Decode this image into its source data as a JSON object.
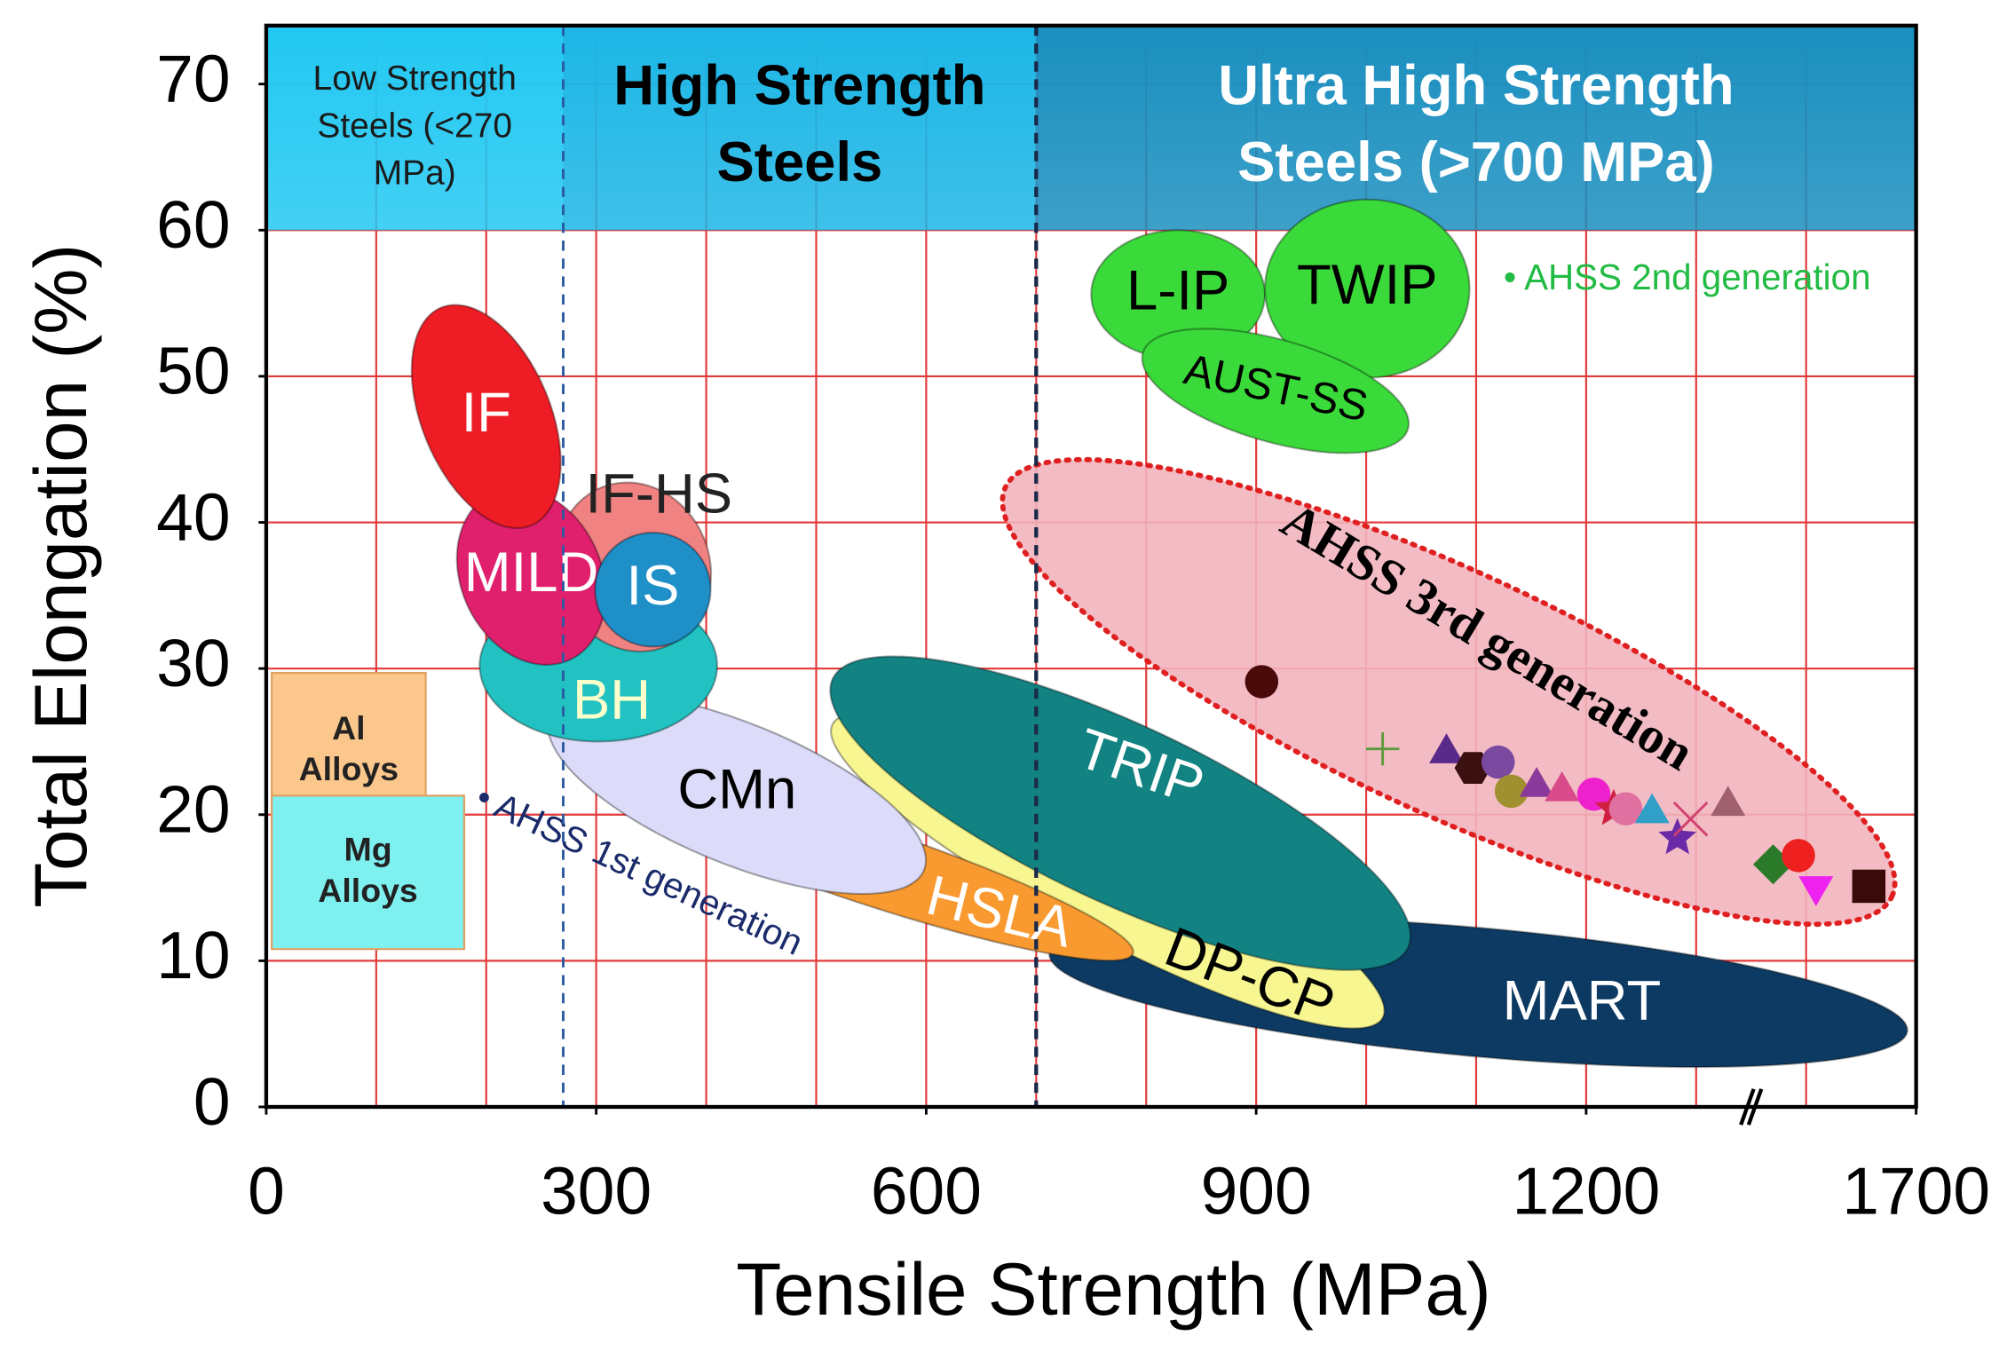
{
  "chart_data": {
    "type": "region-map",
    "xlabel": "Tensile Strength (MPa)",
    "ylabel": "Total Elongation (%)",
    "xlim": [
      0,
      1700
    ],
    "xbreak": [
      1350,
      1550
    ],
    "ylim": [
      0,
      74
    ],
    "xticks": [
      0,
      300,
      600,
      900,
      1200,
      1700
    ],
    "yticks": [
      0,
      10,
      20,
      30,
      40,
      50,
      60,
      70
    ],
    "xgrid": [
      100,
      200,
      300,
      400,
      500,
      600,
      700,
      800,
      900,
      1000,
      1100,
      1200,
      1300,
      1600
    ],
    "grid_color": "#e23a3a",
    "bands": [
      {
        "lines": [
          "Low Strength",
          "Steels (<270",
          "MPa)"
        ],
        "from": 0,
        "to": 270,
        "color": "#22c8f2",
        "text_color": "#1a1a1a",
        "bold": false
      },
      {
        "lines": [
          "High Strength",
          "Steels"
        ],
        "from": 270,
        "to": 700,
        "color": "#1cb6e6",
        "text_color": "#000000",
        "bold": true
      },
      {
        "lines": [
          "Ultra High Strength",
          "Steels (>700 MPa)"
        ],
        "from": 700,
        "to": 1700,
        "color": "#1a8fbf",
        "text_color": "#ffffff",
        "bold": true
      }
    ],
    "alloys": [
      {
        "lines": [
          "Al",
          "Alloys"
        ],
        "x": [
          5,
          145
        ],
        "y": [
          19,
          29.7
        ],
        "color": "#fcc78c"
      },
      {
        "lines": [
          "Mg",
          "Alloys"
        ],
        "x": [
          5,
          180
        ],
        "y": [
          10.8,
          21.3
        ],
        "color": "#7ff0f0"
      }
    ],
    "third_gen": {
      "name": "AHSS 3rd generation",
      "from": [
        672,
        42.4
      ],
      "to": [
        1678,
        14.4
      ],
      "minor": 8.3,
      "color": "#f2b4bc",
      "label_at": [
        1108,
        31.9
      ]
    },
    "regions": [
      {
        "name": "MART",
        "from": [
          712,
          10.5
        ],
        "to": [
          1692,
          5.2
        ],
        "minor": 4.4,
        "color": "#0c3a62",
        "text_color": "#ffffff",
        "label_at": [
          1196,
          7
        ]
      },
      {
        "name": "DP-CP",
        "from": [
          515,
          26.2
        ],
        "to": [
          1015,
          6.1
        ],
        "minor": 4.4,
        "color": "#f8f690",
        "text_color": "#000000",
        "label_at": [
          893,
          8.7
        ],
        "tilted_label": true
      },
      {
        "name": "TRIP",
        "from": [
          515,
          29.3
        ],
        "to": [
          1038,
          10.9
        ],
        "minor": 6.1,
        "color": "#128282",
        "text_color": "#ffffff",
        "label_at": [
          794,
          23
        ],
        "tilted_label": true
      },
      {
        "name": "HSLA",
        "from": [
          299,
          22.7
        ],
        "to": [
          788,
          10.5
        ],
        "minor": 2.6,
        "color": "#f99a30",
        "text_color": "#ffffff",
        "label_at": [
          666,
          13.1
        ],
        "tilted_label": true
      },
      {
        "name": "CMn",
        "from": [
          258,
          26.7
        ],
        "to": [
          598,
          16.2
        ],
        "minor": 4.8,
        "color": "#dcdcfa",
        "text_color": "#000000"
      },
      {
        "name": "BH",
        "from": [
          194,
          30.2
        ],
        "to": [
          410,
          30.2
        ],
        "minor": 5.2,
        "color": "#22c2c2",
        "text_color": "#ffffcc",
        "label_at": [
          314,
          27.6
        ]
      },
      {
        "name": "IF-HS",
        "from": [
          305,
          42.4
        ],
        "to": [
          363,
          31.5
        ],
        "minor": 5.2,
        "color": "#f08282",
        "text_color": "#222222",
        "label_at": [
          357,
          41.7
        ]
      },
      {
        "name": "MILD",
        "from": [
          206,
          42.0
        ],
        "to": [
          276,
          30.6
        ],
        "minor": 4.8,
        "color": "#e0206c",
        "text_color": "#ffffff"
      },
      {
        "name": "IS",
        "from": [
          299,
          35.4
        ],
        "to": [
          404,
          35.4
        ],
        "minor": 3.9,
        "color": "#1f8fc8",
        "text_color": "#ffffff"
      },
      {
        "name": "IF",
        "from": [
          159,
          54.7
        ],
        "to": [
          241,
          39.8
        ],
        "minor": 4.4,
        "color": "#ee1c24",
        "text_color": "#ffffff"
      },
      {
        "name": "L-IP",
        "from": [
          750,
          55.6
        ],
        "to": [
          908,
          55.6
        ],
        "minor": 4.4,
        "color": "#3ada3a",
        "text_color": "#000000"
      },
      {
        "name": "TWIP",
        "from": [
          908,
          56.0
        ],
        "to": [
          1094,
          56.0
        ],
        "minor": 6.1,
        "color": "#3ada3a",
        "text_color": "#000000"
      },
      {
        "name": "AUST-SS",
        "from": [
          797,
          51.6
        ],
        "to": [
          1038,
          46.4
        ],
        "minor": 3.5,
        "color": "#3ada3a",
        "text_color": "#000000",
        "tilted_label": true
      }
    ],
    "points": [
      {
        "x": 905,
        "y": 29.1,
        "shape": "circle",
        "color": "#4a0a0a"
      },
      {
        "x": 1015,
        "y": 24.5,
        "shape": "plus",
        "color": "#5a9a3a"
      },
      {
        "x": 1073,
        "y": 24.2,
        "shape": "triangle",
        "color": "#5a2a8a"
      },
      {
        "x": 1097,
        "y": 23.2,
        "shape": "hexagon",
        "color": "#3a1010"
      },
      {
        "x": 1120,
        "y": 23.6,
        "shape": "circle",
        "color": "#7a4aa0"
      },
      {
        "x": 1132,
        "y": 21.6,
        "shape": "circle",
        "color": "#a09030"
      },
      {
        "x": 1155,
        "y": 21.9,
        "shape": "triangle",
        "color": "#8a3a9a"
      },
      {
        "x": 1178,
        "y": 21.6,
        "shape": "triangle",
        "color": "#d84a8a"
      },
      {
        "x": 1207,
        "y": 21.4,
        "shape": "circle",
        "color": "#ee22cc"
      },
      {
        "x": 1225,
        "y": 20.4,
        "shape": "star",
        "color": "#d02040"
      },
      {
        "x": 1236,
        "y": 20.4,
        "shape": "circle",
        "color": "#e070a0"
      },
      {
        "x": 1260,
        "y": 20.1,
        "shape": "triangle",
        "color": "#30a0c8"
      },
      {
        "x": 1283,
        "y": 18.4,
        "shape": "star",
        "color": "#6a2aa8"
      },
      {
        "x": 1295,
        "y": 19.7,
        "shape": "cross",
        "color": "#d04070"
      },
      {
        "x": 1329,
        "y": 20.6,
        "shape": "triangle",
        "color": "#a06070"
      },
      {
        "x": 1570,
        "y": 16.6,
        "shape": "diamond",
        "color": "#2a7a2a"
      },
      {
        "x": 1593,
        "y": 17.2,
        "shape": "circle",
        "color": "#ee2020"
      },
      {
        "x": 1609,
        "y": 15.1,
        "shape": "triangle-down",
        "color": "#ee22ee"
      },
      {
        "x": 1657,
        "y": 15.1,
        "shape": "square",
        "color": "#3a0a0a"
      }
    ],
    "annotations": [
      {
        "text": "• AHSS 2nd generation",
        "at": [
          1125,
          56.6
        ],
        "color": "#22bb44"
      },
      {
        "text": "• AHSS 1st generation",
        "at": [
          192,
          21.2
        ],
        "color": "#1a2a6a"
      }
    ]
  }
}
